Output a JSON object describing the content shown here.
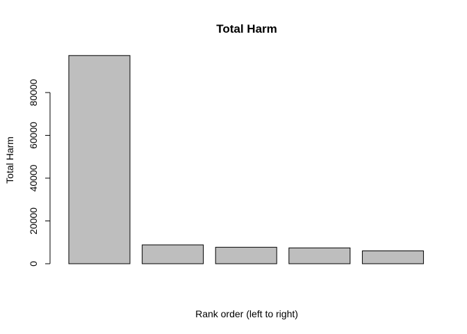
{
  "chart_data": {
    "type": "bar",
    "title": "Total Harm",
    "xlabel": "Rank order (left to right)",
    "ylabel": "Total Harm",
    "categories": [
      "",
      "",
      "",
      "",
      ""
    ],
    "values": [
      97300,
      8800,
      7700,
      7400,
      6000
    ],
    "ylim": [
      0,
      100000
    ],
    "yticks": [
      0,
      20000,
      40000,
      60000,
      80000
    ],
    "ytick_labels": [
      "0",
      "20000",
      "40000",
      "60000",
      "80000"
    ],
    "grid": false,
    "legend": "none",
    "bar_color": "#bebebe",
    "edge_color": "#000000"
  }
}
